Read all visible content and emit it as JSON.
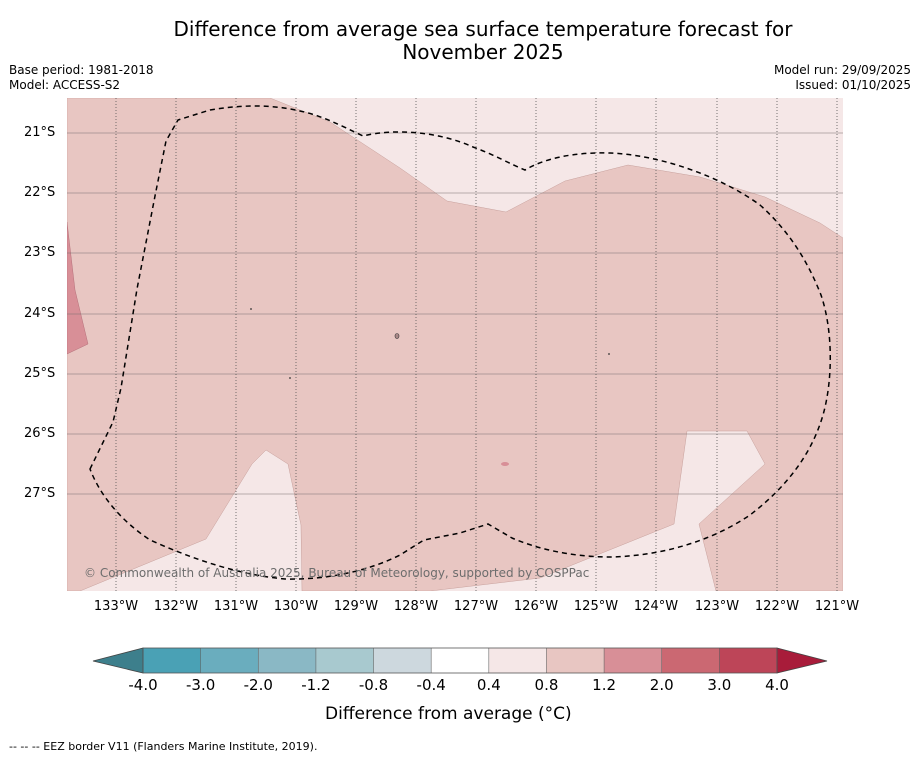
{
  "title": "Difference from average sea surface temperature forecast for November 2025",
  "base_period": "Base period: 1981-2018",
  "model": "Model: ACCESS-S2",
  "model_run": "Model run: 29/09/2025",
  "issued": "Issued: 01/10/2025",
  "copyright": "© Commonwealth of Australia 2025, Bureau of Meteorology, supported by COSPPac",
  "lat_labels": [
    "21°S",
    "22°S",
    "23°S",
    "24°S",
    "25°S",
    "26°S",
    "27°S"
  ],
  "lon_labels": [
    "133°W",
    "132°W",
    "131°W",
    "130°W",
    "129°W",
    "128°W",
    "127°W",
    "126°W",
    "125°W",
    "124°W",
    "123°W",
    "122°W",
    "121°W"
  ],
  "colorbar": {
    "title": "Difference from average (°C)",
    "tick_labels": [
      "-4.0",
      "-3.0",
      "-2.0",
      "-1.2",
      "-0.8",
      "-0.4",
      "0.4",
      "0.8",
      "1.2",
      "2.0",
      "3.0",
      "4.0"
    ],
    "colors": [
      "#4aa1b5",
      "#6aadbe",
      "#8ab8c5",
      "#a8c9cf",
      "#cdd8de",
      "#ffffff",
      "#f5e7e7",
      "#e8c6c2",
      "#d88f97",
      "#cb6872",
      "#bd4558"
    ],
    "low_extend_color": "#3d7f8c",
    "high_extend_color": "#a81c3a"
  },
  "map_colors": {
    "background": "#f5e7e7",
    "main": "#e8c6c2",
    "warm": "#d88f97"
  },
  "footer": "--  --  -- EEZ border V11 (Flanders Marine Institute, 2019)."
}
